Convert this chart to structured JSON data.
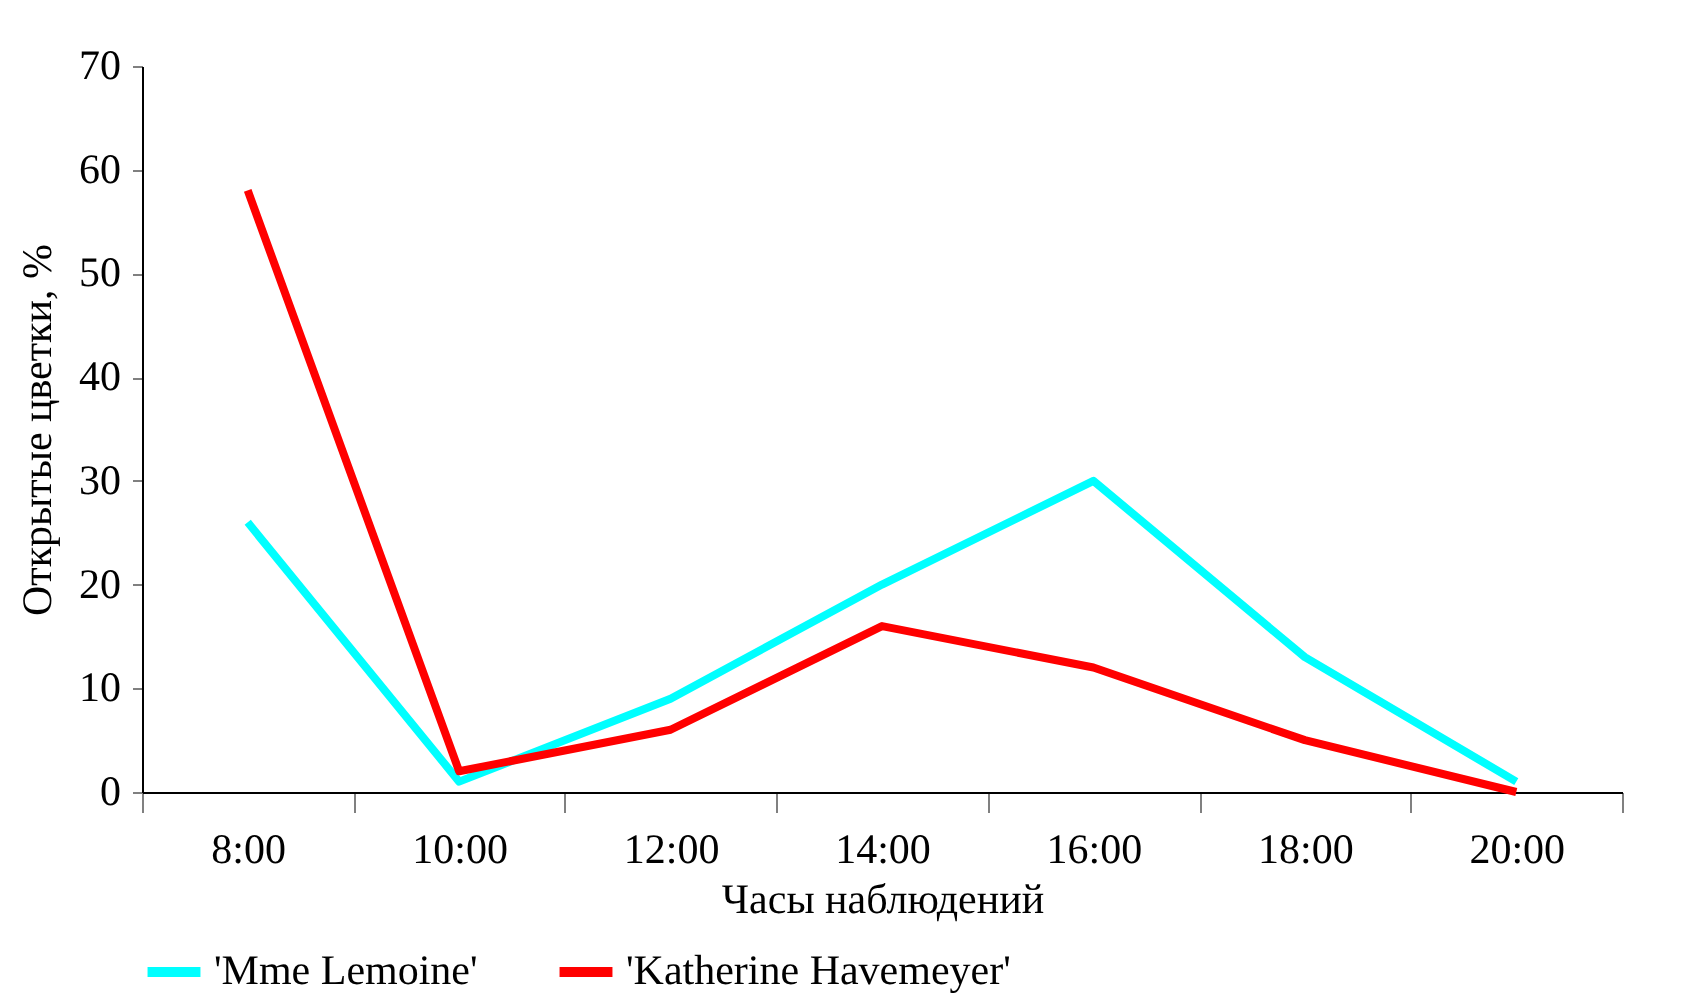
{
  "chart_data": {
    "type": "line",
    "xlabel": "Часы наблюдений",
    "ylabel": "Открытые цветки, %",
    "categories": [
      "8:00",
      "10:00",
      "12:00",
      "14:00",
      "16:00",
      "18:00",
      "20:00"
    ],
    "series": [
      {
        "name": "'Mme Lemoine'",
        "color": "#00ffff",
        "values": [
          26,
          1,
          9,
          20,
          30,
          13,
          1
        ]
      },
      {
        "name": "'Katherine Havemeyer'",
        "color": "#ff0000",
        "values": [
          58,
          2,
          6,
          16,
          12,
          5,
          0
        ]
      }
    ],
    "ylim": [
      0,
      70
    ],
    "yticks": [
      0,
      10,
      20,
      30,
      40,
      50,
      60,
      70
    ],
    "grid": false,
    "legend": "bottom",
    "line_style": "solid",
    "marker": "none"
  }
}
